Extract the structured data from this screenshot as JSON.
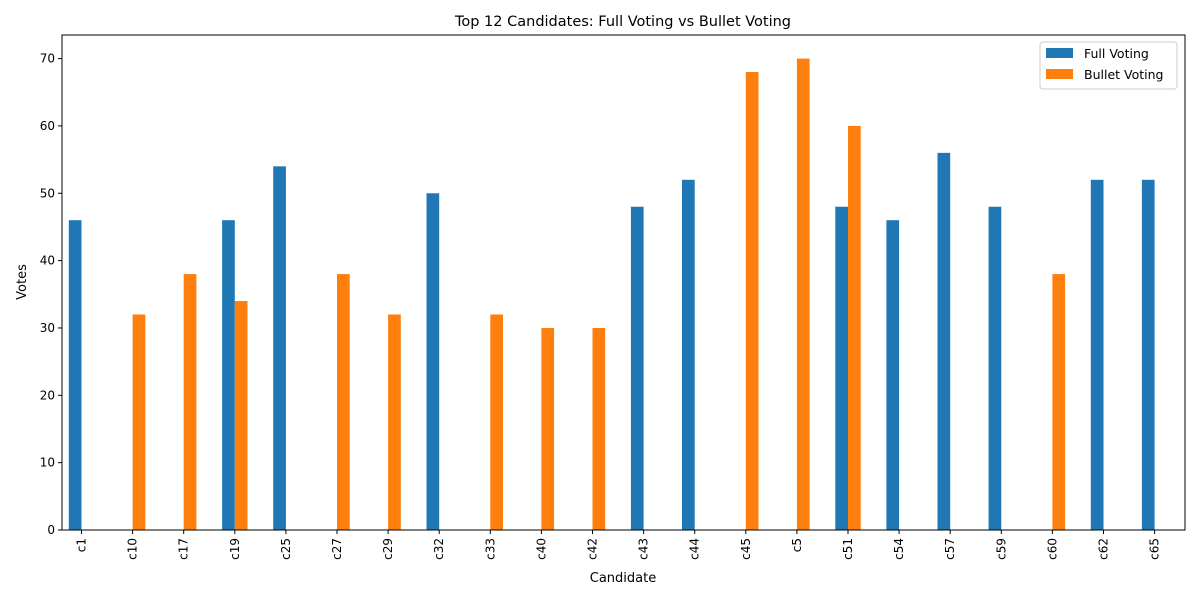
{
  "chart_data": {
    "type": "bar",
    "title": "Top 12 Candidates: Full Voting vs Bullet Voting",
    "xlabel": "Candidate",
    "ylabel": "Votes",
    "ylim": [
      0,
      73.5
    ],
    "yticks": [
      0,
      10,
      20,
      30,
      40,
      50,
      60,
      70
    ],
    "categories": [
      "c1",
      "c10",
      "c17",
      "c19",
      "c25",
      "c27",
      "c29",
      "c32",
      "c33",
      "c40",
      "c42",
      "c43",
      "c44",
      "c45",
      "c5",
      "c51",
      "c54",
      "c57",
      "c59",
      "c60",
      "c62",
      "c65"
    ],
    "series": [
      {
        "name": "Full Voting",
        "color": "#1f77b4",
        "values": [
          46,
          0,
          0,
          46,
          54,
          0,
          0,
          50,
          0,
          0,
          0,
          48,
          52,
          0,
          0,
          48,
          46,
          56,
          48,
          0,
          52,
          52
        ]
      },
      {
        "name": "Bullet Voting",
        "color": "#ff7f0e",
        "values": [
          0,
          32,
          38,
          34,
          0,
          38,
          32,
          0,
          32,
          30,
          30,
          0,
          0,
          68,
          70,
          60,
          0,
          0,
          0,
          38,
          0,
          0
        ]
      }
    ],
    "legend_position": "top-right",
    "grid": false
  }
}
